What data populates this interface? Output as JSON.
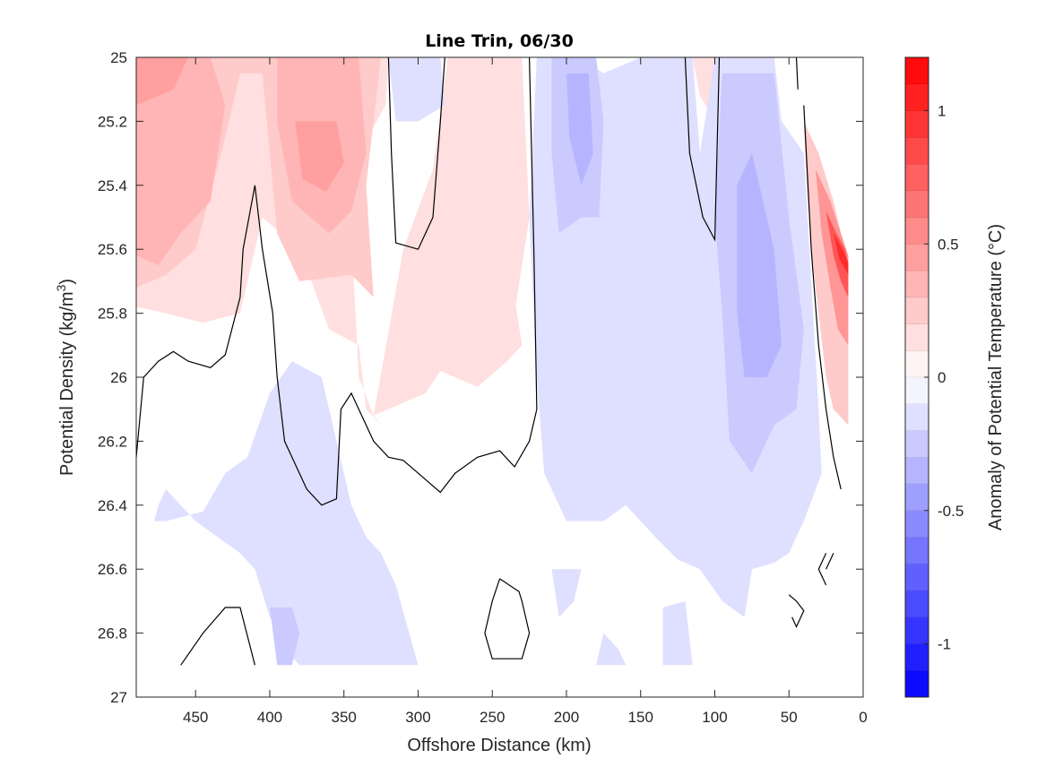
{
  "chart_data": {
    "type": "contour",
    "title": "Line Trin, 06/30",
    "xlabel": "Offshore Distance (km)",
    "ylabel_main": "Potential Density (kg/m",
    "ylabel_sup": "3",
    "ylabel_close": ")",
    "colorbar_label": "Anomaly of Potential Temperature (°C)",
    "xlim": [
      490,
      0
    ],
    "x_reversed": true,
    "ylim": [
      25,
      27
    ],
    "y_reversed": true,
    "xticks": [
      450,
      400,
      350,
      300,
      250,
      200,
      150,
      100,
      50,
      0
    ],
    "yticks": [
      25,
      25.2,
      25.4,
      25.6,
      25.8,
      26,
      26.2,
      26.4,
      26.6,
      26.8,
      27
    ],
    "ytick_labels": [
      "25",
      "25.2",
      "25.4",
      "25.6",
      "25.8",
      "26",
      "26.2",
      "26.4",
      "26.6",
      "26.8",
      "27"
    ],
    "colorbar_range": [
      -1.2,
      1.2
    ],
    "colorbar_step": 0.1,
    "colorbar_ticks": [
      -1,
      -0.5,
      0,
      0.5,
      1
    ],
    "colorbar_tick_labels": [
      "-1",
      "-0.5",
      "0",
      "0.5",
      "1"
    ],
    "colormap": "blue-white-red",
    "colors": {
      "negative_max": "#0000ff",
      "neutral": "#ffffff",
      "positive_max": "#ff0000",
      "zero_contour": "#000000"
    },
    "regions": [
      {
        "level": 0.15,
        "points": [
          [
            490,
            25
          ],
          [
            320,
            25
          ],
          [
            322,
            25.15
          ],
          [
            340,
            25.3
          ],
          [
            345,
            25.55
          ],
          [
            340,
            26.0
          ],
          [
            330,
            26.12
          ],
          [
            310,
            25.6
          ],
          [
            290,
            25.35
          ],
          [
            280,
            25.0
          ],
          [
            230,
            25.0
          ],
          [
            225,
            25.5
          ],
          [
            240,
            25.95
          ],
          [
            260,
            26.03
          ],
          [
            285,
            25.98
          ],
          [
            295,
            26.05
          ],
          [
            330,
            26.12
          ],
          [
            325,
            26.15
          ],
          [
            335,
            26.1
          ],
          [
            340,
            25.9
          ],
          [
            360,
            25.85
          ],
          [
            380,
            25.6
          ],
          [
            405,
            25.5
          ],
          [
            410,
            25.6
          ],
          [
            420,
            25.8
          ],
          [
            445,
            25.83
          ],
          [
            470,
            25.8
          ],
          [
            490,
            25.78
          ]
        ]
      },
      {
        "level": 0.25,
        "points": [
          [
            490,
            25
          ],
          [
            325,
            25
          ],
          [
            330,
            25.2
          ],
          [
            335,
            25.4
          ],
          [
            330,
            25.75
          ],
          [
            345,
            25.68
          ],
          [
            380,
            25.7
          ],
          [
            395,
            25.55
          ],
          [
            400,
            25.3
          ],
          [
            405,
            25.05
          ],
          [
            420,
            25.05
          ],
          [
            430,
            25.25
          ],
          [
            450,
            25.6
          ],
          [
            470,
            25.68
          ],
          [
            490,
            25.72
          ]
        ]
      },
      {
        "level": 0.35,
        "points": [
          [
            490,
            25
          ],
          [
            440,
            25
          ],
          [
            430,
            25.15
          ],
          [
            440,
            25.45
          ],
          [
            460,
            25.55
          ],
          [
            475,
            25.65
          ],
          [
            490,
            25.62
          ]
        ]
      },
      {
        "level": 0.35,
        "points": [
          [
            395,
            25.0
          ],
          [
            340,
            25.0
          ],
          [
            335,
            25.3
          ],
          [
            345,
            25.48
          ],
          [
            360,
            25.55
          ],
          [
            385,
            25.45
          ],
          [
            395,
            25.2
          ]
        ]
      },
      {
        "level": 0.45,
        "points": [
          [
            383,
            25.2
          ],
          [
            355,
            25.2
          ],
          [
            350,
            25.33
          ],
          [
            362,
            25.42
          ],
          [
            378,
            25.38
          ]
        ]
      },
      {
        "level": 0.45,
        "points": [
          [
            490,
            25.0
          ],
          [
            455,
            25.0
          ],
          [
            465,
            25.1
          ],
          [
            490,
            25.15
          ]
        ]
      },
      {
        "level": 0.15,
        "points": [
          [
            115,
            25.0
          ],
          [
            100,
            25.0
          ],
          [
            100,
            25.2
          ],
          [
            110,
            25.12
          ]
        ]
      },
      {
        "level": 0.15,
        "points": [
          [
            270,
            25.05
          ],
          [
            262,
            25.2
          ],
          [
            255,
            25.3
          ],
          [
            245,
            25.55
          ],
          [
            235,
            25.75
          ],
          [
            230,
            25.9
          ],
          [
            240,
            25.95
          ],
          [
            255,
            26.0
          ],
          [
            270,
            25.95
          ],
          [
            275,
            25.7
          ],
          [
            272,
            25.4
          ]
        ]
      },
      {
        "level": -0.15,
        "points": [
          [
            320,
            25.0
          ],
          [
            285,
            25.0
          ],
          [
            282,
            25.15
          ],
          [
            300,
            25.2
          ],
          [
            315,
            25.2
          ]
        ]
      },
      {
        "level": -0.15,
        "points": [
          [
            220,
            25.0
          ],
          [
            190,
            25.0
          ],
          [
            175,
            25.05
          ],
          [
            150,
            25.0
          ],
          [
            115,
            25.0
          ],
          [
            110,
            25.3
          ],
          [
            100,
            25.0
          ],
          [
            60,
            25.0
          ],
          [
            55,
            25.2
          ],
          [
            40,
            25.3
          ],
          [
            30,
            26.1
          ],
          [
            28,
            26.3
          ],
          [
            40,
            26.45
          ],
          [
            50,
            26.55
          ],
          [
            60,
            26.58
          ],
          [
            75,
            26.6
          ],
          [
            80,
            26.75
          ],
          [
            95,
            26.7
          ],
          [
            110,
            26.6
          ],
          [
            125,
            26.57
          ],
          [
            140,
            26.5
          ],
          [
            150,
            26.45
          ],
          [
            160,
            26.4
          ],
          [
            175,
            26.45
          ],
          [
            200,
            26.45
          ],
          [
            215,
            26.3
          ],
          [
            220,
            26.0
          ],
          [
            225,
            25.5
          ]
        ]
      },
      {
        "level": -0.25,
        "points": [
          [
            210,
            25.0
          ],
          [
            180,
            25.0
          ],
          [
            175,
            25.2
          ],
          [
            178,
            25.5
          ],
          [
            190,
            25.5
          ],
          [
            205,
            25.55
          ],
          [
            210,
            25.3
          ]
        ]
      },
      {
        "level": -0.25,
        "points": [
          [
            95,
            25.05
          ],
          [
            60,
            25.05
          ],
          [
            50,
            25.5
          ],
          [
            40,
            25.85
          ],
          [
            45,
            26.1
          ],
          [
            60,
            26.15
          ],
          [
            75,
            26.3
          ],
          [
            90,
            26.2
          ],
          [
            95,
            25.8
          ],
          [
            100,
            25.5
          ]
        ]
      },
      {
        "level": -0.35,
        "points": [
          [
            200,
            25.05
          ],
          [
            185,
            25.05
          ],
          [
            182,
            25.3
          ],
          [
            190,
            25.4
          ],
          [
            198,
            25.25
          ]
        ]
      },
      {
        "level": -0.35,
        "points": [
          [
            85,
            25.4
          ],
          [
            75,
            25.3
          ],
          [
            60,
            25.6
          ],
          [
            55,
            25.9
          ],
          [
            65,
            26.0
          ],
          [
            80,
            26.0
          ],
          [
            85,
            25.8
          ]
        ]
      },
      {
        "level": -0.15,
        "points": [
          [
            430,
            26.3
          ],
          [
            415,
            26.25
          ],
          [
            400,
            26.05
          ],
          [
            385,
            25.95
          ],
          [
            365,
            26.0
          ],
          [
            355,
            26.2
          ],
          [
            345,
            26.4
          ],
          [
            335,
            26.5
          ],
          [
            325,
            26.55
          ],
          [
            315,
            26.65
          ],
          [
            300,
            26.9
          ],
          [
            380,
            26.9
          ],
          [
            390,
            26.85
          ],
          [
            400,
            26.75
          ],
          [
            410,
            26.6
          ],
          [
            420,
            26.55
          ],
          [
            450,
            26.45
          ],
          [
            470,
            26.35
          ],
          [
            475,
            26.4
          ],
          [
            478,
            26.45
          ],
          [
            470,
            26.45
          ],
          [
            445,
            26.42
          ]
        ]
      },
      {
        "level": -0.25,
        "points": [
          [
            400,
            26.72
          ],
          [
            385,
            26.72
          ],
          [
            380,
            26.8
          ],
          [
            385,
            26.9
          ],
          [
            395,
            26.9
          ]
        ]
      },
      {
        "level": -0.15,
        "points": [
          [
            190,
            26.6
          ],
          [
            210,
            26.6
          ],
          [
            205,
            26.75
          ],
          [
            195,
            26.7
          ]
        ]
      },
      {
        "level": -0.15,
        "points": [
          [
            120,
            26.7
          ],
          [
            135,
            26.72
          ],
          [
            135,
            26.9
          ],
          [
            115,
            26.9
          ]
        ]
      },
      {
        "level": -0.15,
        "points": [
          [
            165,
            26.85
          ],
          [
            175,
            26.8
          ],
          [
            180,
            26.9
          ],
          [
            160,
            26.9
          ]
        ]
      },
      {
        "level": 0.25,
        "points": [
          [
            40,
            25.2
          ],
          [
            30,
            25.3
          ],
          [
            20,
            25.45
          ],
          [
            15,
            25.55
          ],
          [
            10,
            25.65
          ],
          [
            10,
            26.15
          ],
          [
            20,
            26.1
          ],
          [
            25,
            26.0
          ],
          [
            30,
            25.8
          ],
          [
            35,
            25.6
          ],
          [
            38,
            25.4
          ]
        ]
      },
      {
        "level": 0.5,
        "points": [
          [
            32,
            25.35
          ],
          [
            22,
            25.45
          ],
          [
            15,
            25.55
          ],
          [
            10,
            25.62
          ],
          [
            10,
            25.9
          ],
          [
            17,
            25.85
          ],
          [
            22,
            25.72
          ],
          [
            28,
            25.55
          ]
        ]
      },
      {
        "level": 0.8,
        "points": [
          [
            25,
            25.48
          ],
          [
            18,
            25.55
          ],
          [
            12,
            25.6
          ],
          [
            10,
            25.65
          ],
          [
            10,
            25.75
          ],
          [
            15,
            25.7
          ],
          [
            20,
            25.62
          ]
        ]
      },
      {
        "level": 1.0,
        "points": [
          [
            20,
            25.55
          ],
          [
            14,
            25.6
          ],
          [
            10,
            25.64
          ],
          [
            10,
            25.68
          ],
          [
            16,
            25.63
          ]
        ]
      }
    ],
    "zero_contours": [
      [
        [
          490,
          26.25
        ],
        [
          485,
          26.0
        ],
        [
          475,
          25.95
        ],
        [
          465,
          25.92
        ],
        [
          455,
          25.95
        ],
        [
          440,
          25.97
        ],
        [
          430,
          25.93
        ],
        [
          420,
          25.75
        ],
        [
          418,
          25.6
        ],
        [
          410,
          25.4
        ],
        [
          405,
          25.6
        ],
        [
          398,
          25.8
        ],
        [
          395,
          26.0
        ],
        [
          390,
          26.2
        ],
        [
          375,
          26.35
        ],
        [
          365,
          26.4
        ],
        [
          355,
          26.38
        ],
        [
          352,
          26.1
        ],
        [
          345,
          26.05
        ],
        [
          330,
          26.2
        ],
        [
          320,
          26.25
        ],
        [
          310,
          26.26
        ],
        [
          300,
          26.3
        ],
        [
          285,
          26.36
        ],
        [
          275,
          26.3
        ],
        [
          260,
          26.25
        ],
        [
          245,
          26.23
        ],
        [
          235,
          26.28
        ],
        [
          225,
          26.2
        ],
        [
          220,
          26.1
        ],
        [
          222,
          25.6
        ],
        [
          225,
          25.0
        ]
      ],
      [
        [
          320,
          25.0
        ],
        [
          318,
          25.3
        ],
        [
          315,
          25.58
        ],
        [
          300,
          25.6
        ],
        [
          290,
          25.5
        ],
        [
          285,
          25.2
        ],
        [
          282,
          25.0
        ]
      ],
      [
        [
          120,
          25.0
        ],
        [
          117,
          25.3
        ],
        [
          108,
          25.5
        ],
        [
          100,
          25.57
        ],
        [
          98,
          25.2
        ],
        [
          97,
          25.0
        ]
      ],
      [
        [
          45,
          25.0
        ],
        [
          44,
          25.1
        ]
      ],
      [
        [
          40,
          25.15
        ],
        [
          35,
          25.6
        ],
        [
          30,
          25.9
        ],
        [
          25,
          26.1
        ],
        [
          20,
          26.25
        ],
        [
          15,
          26.35
        ]
      ],
      [
        [
          25,
          26.6
        ],
        [
          20,
          26.55
        ]
      ],
      [
        [
          25,
          26.55
        ],
        [
          30,
          26.6
        ],
        [
          25,
          26.65
        ]
      ],
      [
        [
          460,
          26.9
        ],
        [
          445,
          26.8
        ],
        [
          430,
          26.72
        ],
        [
          420,
          26.72
        ],
        [
          410,
          26.9
        ]
      ],
      [
        [
          245,
          26.63
        ],
        [
          232,
          26.67
        ],
        [
          230,
          26.7
        ],
        [
          225,
          26.8
        ],
        [
          230,
          26.88
        ],
        [
          250,
          26.88
        ],
        [
          255,
          26.8
        ],
        [
          250,
          26.7
        ],
        [
          245,
          26.63
        ]
      ],
      [
        [
          50,
          26.68
        ],
        [
          45,
          26.7
        ],
        [
          40,
          26.73
        ],
        [
          45,
          26.78
        ],
        [
          48,
          26.75
        ]
      ]
    ]
  }
}
